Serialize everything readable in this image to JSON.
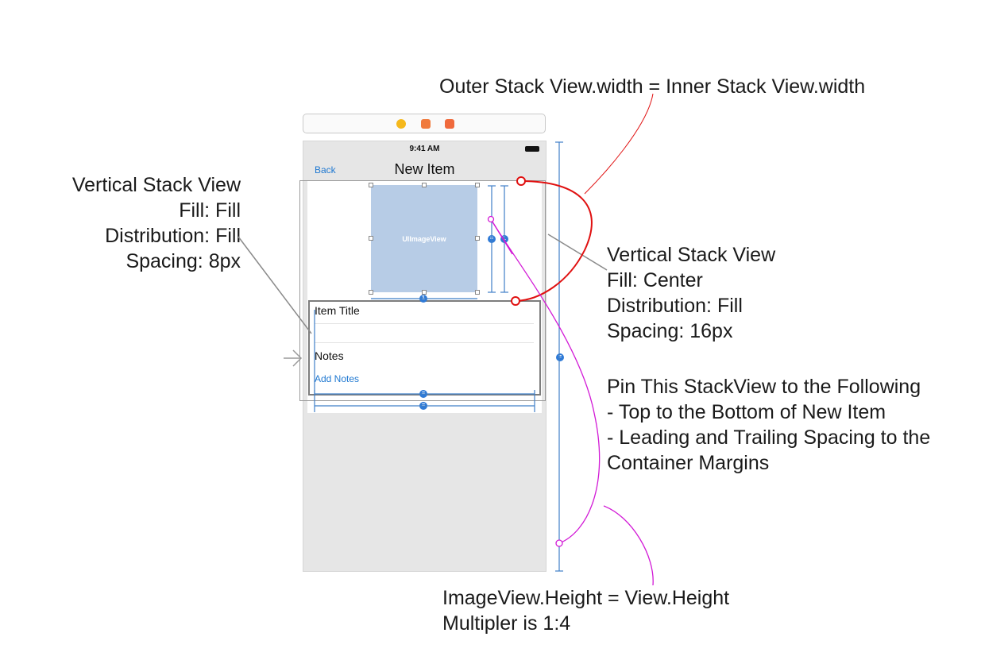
{
  "device": {
    "status_time": "9:41 AM",
    "nav_back": "Back",
    "nav_title": "New Item",
    "image_view_label": "UIImageView",
    "item_title_label": "Item Title",
    "notes_label": "Notes",
    "add_notes_link": "Add Notes"
  },
  "constraint_badges": {
    "equal": "=",
    "one": "1"
  },
  "annotations": {
    "top": "Outer Stack View.width = Inner Stack View.width",
    "left": [
      "Vertical Stack View",
      "Fill: Fill",
      "Distribution: Fill",
      "Spacing: 8px"
    ],
    "right": [
      "Vertical Stack View",
      "Fill: Center",
      "Distribution: Fill",
      "Spacing: 16px"
    ],
    "pin": [
      "Pin This StackView to the Following",
      "- Top to the Bottom of New Item",
      "- Leading and Trailing Spacing to the",
      "Container Margins"
    ],
    "bottom": [
      "ImageView.Height = View.Height",
      "Multipler is 1:4"
    ]
  },
  "colors": {
    "accent_blue": "#1f78d1",
    "red_connector": "#e01010",
    "magenta_connector": "#d21ad6",
    "image_fill": "#b7cce6"
  }
}
